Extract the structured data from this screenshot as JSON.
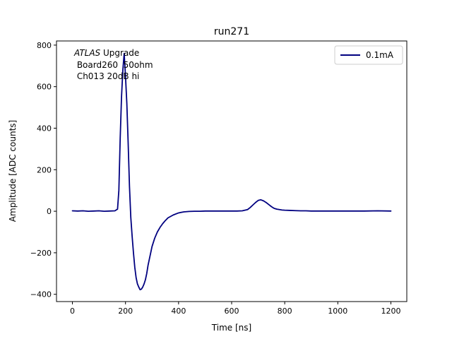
{
  "chart_data": {
    "type": "line",
    "title": "run271",
    "xlabel": "Time [ns]",
    "ylabel": "Amplitude [ADC counts]",
    "xlim": [
      -60,
      1260
    ],
    "ylim": [
      -435,
      820
    ],
    "xticks": [
      0,
      200,
      400,
      600,
      800,
      1000,
      1200
    ],
    "yticks": [
      -400,
      -200,
      0,
      200,
      400,
      600,
      800
    ],
    "grid": false,
    "legend_position": "top-right",
    "annotation": {
      "line1_italic": "ATLAS",
      "line1_rest": " Upgrade",
      "line2": " Board260  50ohm",
      "line3": " Ch013 20dB hi"
    },
    "series": [
      {
        "name": "0.1mA",
        "color": "#000080",
        "x": [
          0,
          20,
          40,
          60,
          80,
          100,
          120,
          140,
          160,
          170,
          175,
          180,
          185,
          190,
          195,
          200,
          205,
          210,
          215,
          220,
          225,
          230,
          235,
          240,
          245,
          250,
          255,
          260,
          265,
          270,
          275,
          280,
          285,
          290,
          295,
          300,
          310,
          320,
          330,
          340,
          350,
          360,
          380,
          400,
          420,
          440,
          460,
          480,
          500,
          520,
          540,
          560,
          580,
          600,
          620,
          640,
          660,
          670,
          680,
          690,
          700,
          710,
          720,
          730,
          740,
          750,
          760,
          770,
          780,
          790,
          800,
          820,
          840,
          860,
          880,
          900,
          950,
          1000,
          1050,
          1100,
          1150,
          1200
        ],
        "y": [
          2,
          1,
          2,
          0,
          1,
          2,
          0,
          1,
          2,
          10,
          100,
          350,
          550,
          680,
          760,
          650,
          520,
          330,
          120,
          -30,
          -120,
          -200,
          -270,
          -320,
          -350,
          -365,
          -378,
          -375,
          -365,
          -350,
          -330,
          -300,
          -260,
          -230,
          -200,
          -170,
          -130,
          -100,
          -78,
          -60,
          -45,
          -32,
          -18,
          -8,
          -3,
          -1,
          0,
          0,
          1,
          1,
          1,
          1,
          1,
          1,
          1,
          2,
          8,
          18,
          30,
          42,
          52,
          55,
          50,
          42,
          32,
          22,
          14,
          10,
          8,
          6,
          5,
          4,
          3,
          2,
          2,
          1,
          1,
          1,
          1,
          1,
          2,
          1
        ]
      }
    ]
  }
}
